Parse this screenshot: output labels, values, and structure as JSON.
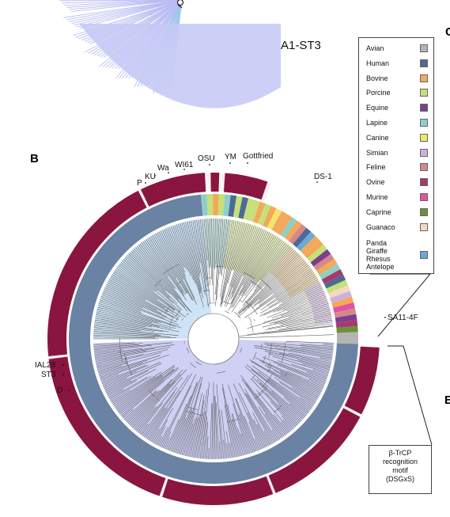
{
  "panels": {
    "b": "B",
    "c_fragment": "C",
    "e_fragment": "E"
  },
  "top_label": "A1-ST3",
  "strain_labels": {
    "p": "P",
    "ku": "KU",
    "wa": "Wa",
    "wi61": "WI61",
    "osu": "OSU",
    "ym": "YM",
    "gottfried": "Gottfried",
    "ds1": "DS-1",
    "sa114f": "SA11-4F",
    "ial28": "IAL28",
    "st3": "ST3",
    "d": "D"
  },
  "legend": {
    "items": [
      {
        "label": "Avian",
        "color": "#b4b4b4"
      },
      {
        "label": "Human",
        "color": "#4d6a96"
      },
      {
        "label": "Bovine",
        "color": "#f2a95a"
      },
      {
        "label": "Porcine",
        "color": "#c6e07a"
      },
      {
        "label": "Equine",
        "color": "#7b3f8c"
      },
      {
        "label": "Lapine",
        "color": "#8fcfc8"
      },
      {
        "label": "Canine",
        "color": "#f5e56b"
      },
      {
        "label": "Simian",
        "color": "#cdb1dd"
      },
      {
        "label": "Feline",
        "color": "#d6878a"
      },
      {
        "label": "Ovine",
        "color": "#a63a6a"
      },
      {
        "label": "Murine",
        "color": "#e4529f"
      },
      {
        "label": "Caprine",
        "color": "#6b8f3c"
      },
      {
        "label": "Guanaco",
        "color": "#f3d9c2"
      }
    ],
    "multi": {
      "lines": [
        "Panda",
        "Giraffe",
        "Rhesus",
        "Antelope"
      ],
      "color": "#6aa9d8"
    }
  },
  "motif_box": [
    "β-TrCP",
    "recognition",
    "motif",
    "(DSGxS)"
  ],
  "colors": {
    "motif_ring": "#8b1640",
    "host_ring": "#6a82a3",
    "clade_blue": "#cfe3f6",
    "clade_purple": "#cfd0f4",
    "branch": "#555555"
  }
}
